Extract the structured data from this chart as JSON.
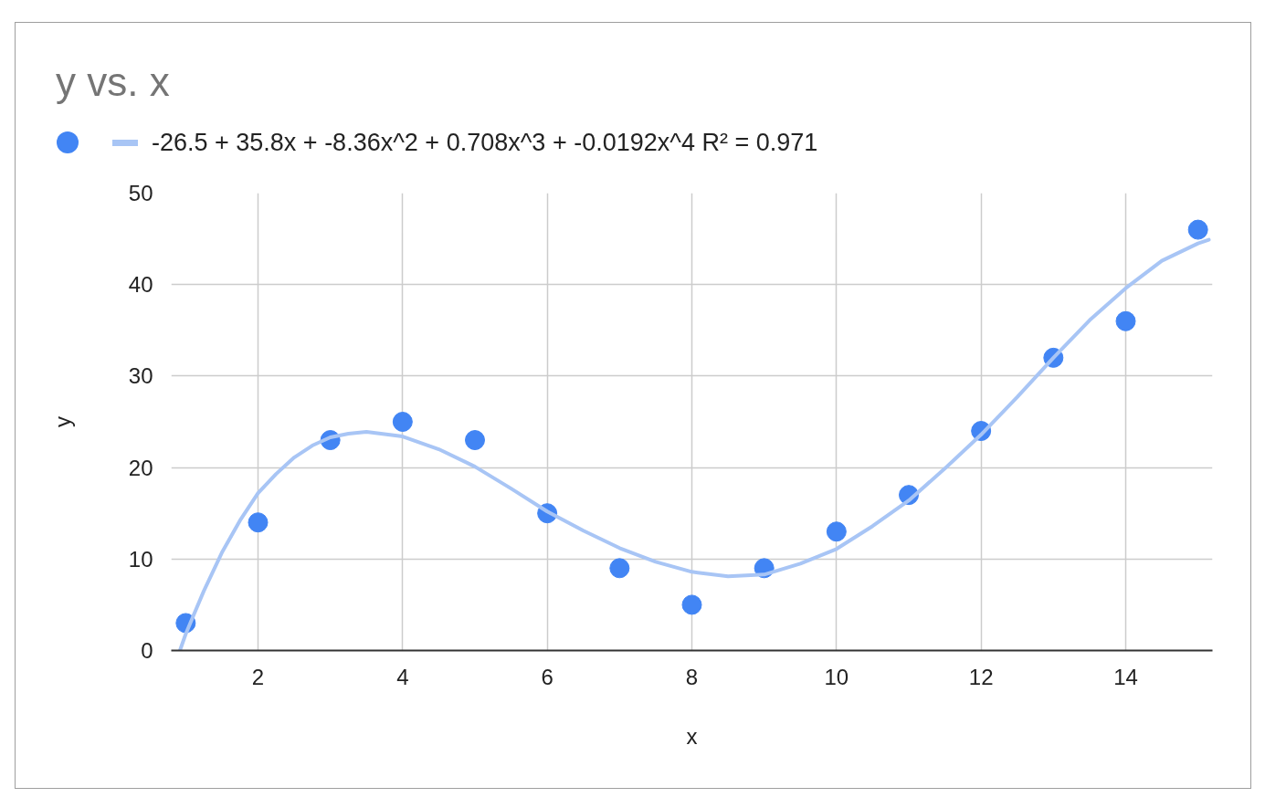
{
  "chart_data": {
    "type": "scatter",
    "title": "y vs. x",
    "xlabel": "x",
    "ylabel": "y",
    "x": [
      1,
      2,
      3,
      4,
      5,
      6,
      7,
      8,
      9,
      10,
      11,
      12,
      13,
      14,
      15
    ],
    "series": [
      {
        "color": "#4285f4",
        "marker": "circle",
        "values": [
          3,
          14,
          23,
          25,
          23,
          15,
          9,
          5,
          9,
          13,
          17,
          24,
          32,
          36,
          46
        ]
      },
      {
        "type": "line",
        "marker": "none",
        "name": "-26.5 + 35.8x + -8.36x^2 + 0.708x^3 + -0.0192x^4 R² = 0.971",
        "color": "#a8c5f5",
        "x": [
          0.92,
          1,
          1.1,
          1.25,
          1.5,
          1.75,
          2,
          2.25,
          2.5,
          2.75,
          3,
          3.25,
          3.5,
          4,
          4.5,
          5,
          5.5,
          6,
          6.5,
          7,
          7.5,
          8,
          8.5,
          9,
          9.5,
          10,
          10.5,
          11,
          11.5,
          12,
          12.5,
          13,
          13.5,
          14,
          14.5,
          15,
          15.15
        ],
        "values": [
          0,
          1.8,
          3.7,
          6.5,
          10.7,
          14.2,
          17.2,
          19.3,
          21.1,
          22.4,
          23.3,
          23.7,
          23.9,
          23.4,
          22,
          20.1,
          17.7,
          15.2,
          13.1,
          11.2,
          9.7,
          8.6,
          8.1,
          8.3,
          9.5,
          11.1,
          13.6,
          16.4,
          19.9,
          23.6,
          27.7,
          32,
          36.1,
          39.6,
          42.6,
          44.5,
          44.9
        ]
      }
    ],
    "xlim": [
      0.8,
      15.2
    ],
    "ylim": [
      0,
      50
    ],
    "xticks": [
      2,
      4,
      6,
      8,
      10,
      12,
      14
    ],
    "yticks": [
      0,
      10,
      20,
      30,
      40,
      50
    ],
    "grid": true,
    "legend": "top left"
  }
}
